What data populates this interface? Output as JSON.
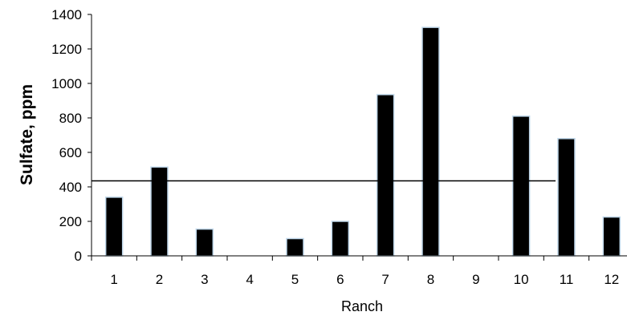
{
  "chart_data": {
    "type": "bar",
    "title": "",
    "xlabel": "Ranch",
    "ylabel": "Sulfate, ppm",
    "categories": [
      "1",
      "2",
      "3",
      "4",
      "5",
      "6",
      "7",
      "8",
      "9",
      "10",
      "11",
      "12"
    ],
    "values": [
      340,
      515,
      155,
      0,
      100,
      200,
      935,
      1325,
      0,
      810,
      680,
      225
    ],
    "ylim": [
      0,
      1400
    ],
    "yticks": [
      "0",
      "200",
      "400",
      "600",
      "800",
      "1000",
      "1200",
      "1400"
    ],
    "reference_line": 435,
    "grid": false,
    "legend": "none",
    "colors": {
      "bar_fill": "#000000",
      "bar_edge": "#bfd7ea",
      "axis": "#000000",
      "reference_line": "#000000"
    }
  }
}
